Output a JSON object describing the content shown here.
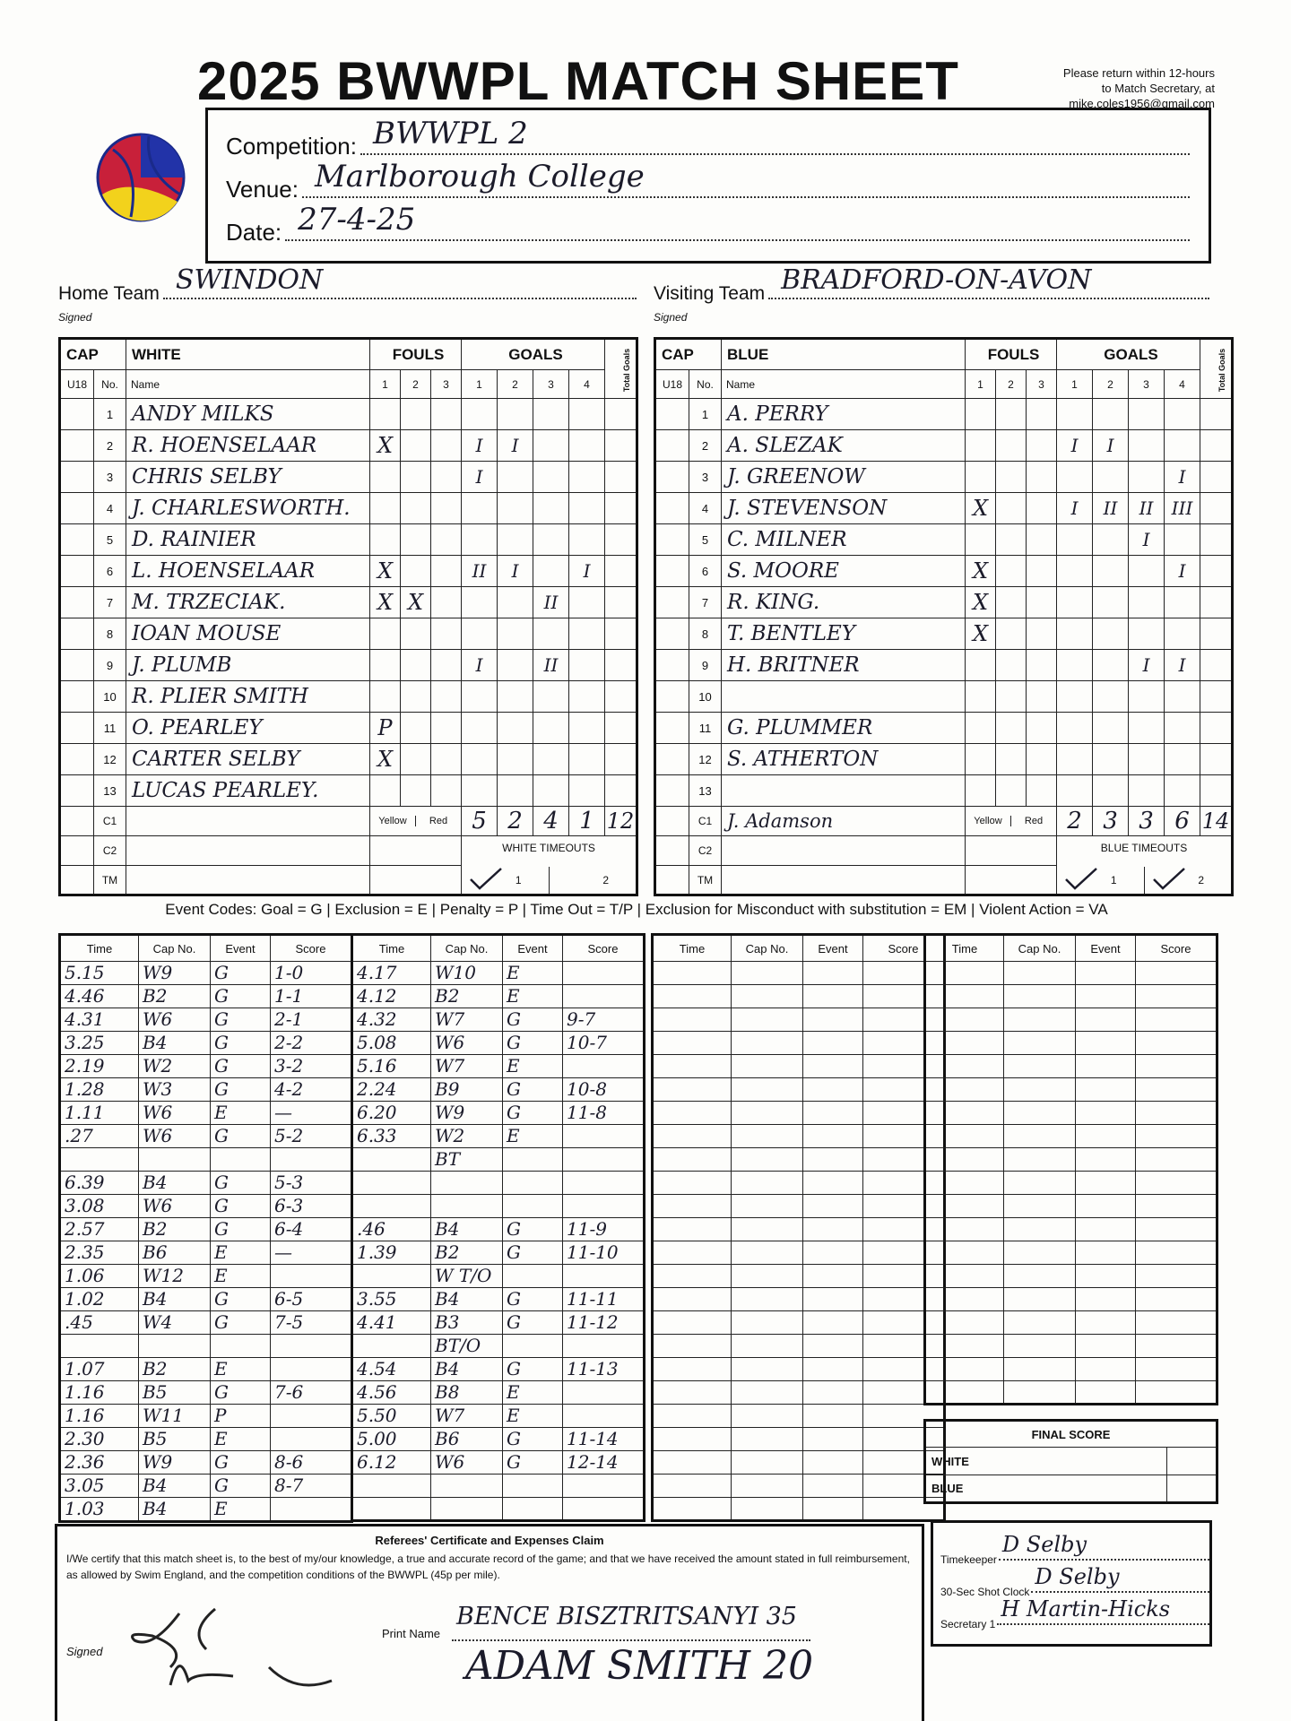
{
  "header": {
    "title": "2025 BWWPL MATCH SHEET",
    "return_note": [
      "Please return within 12-hours",
      "to Match Secretary, at",
      "mike.coles1956@gmail.com"
    ]
  },
  "match": {
    "fields": [
      {
        "label": "Competition:",
        "value": "BWWPL 2"
      },
      {
        "label": "Venue:",
        "value": "Marlborough College"
      },
      {
        "label": "Date:",
        "value": "27-4-25"
      }
    ]
  },
  "teams": [
    {
      "label": "Home Team",
      "team_name": "SWINDON",
      "signed": "Signed",
      "cap": "CAP",
      "colour": "WHITE",
      "fouls": "FOULS",
      "goals": "GOALS",
      "total": "Total Goals",
      "u18": "U18",
      "no": "No.",
      "name_header": "Name",
      "foul_cols": [
        "1",
        "2",
        "3"
      ],
      "goal_cols": [
        "1",
        "2",
        "3",
        "4"
      ],
      "players": [
        {
          "no": "1",
          "name": "ANDY MILKS"
        },
        {
          "no": "2",
          "name": "R. HOENSELAAR",
          "fouls": [
            "X"
          ],
          "goals": {
            "1": "I",
            "2": "I"
          }
        },
        {
          "no": "3",
          "name": "CHRIS SELBY",
          "goals": {
            "1": "I"
          }
        },
        {
          "no": "4",
          "name": "J. CHARLESWORTH."
        },
        {
          "no": "5",
          "name": "D. RAINIER"
        },
        {
          "no": "6",
          "name": "L. HOENSELAAR",
          "fouls": [
            "X"
          ],
          "goals": {
            "1": "II",
            "2": "I",
            "4": "I"
          }
        },
        {
          "no": "7",
          "name": "M. TRZECIAK.",
          "fouls": [
            "X",
            "X"
          ],
          "goals": {
            "3": "II"
          }
        },
        {
          "no": "8",
          "name": "IOAN MOUSE"
        },
        {
          "no": "9",
          "name": "J. PLUMB",
          "goals": {
            "1": "I",
            "3": "II"
          }
        },
        {
          "no": "10",
          "name": "R. PLIER SMITH"
        },
        {
          "no": "11",
          "name": "O. PEARLEY",
          "fouls": [
            "P"
          ]
        },
        {
          "no": "12",
          "name": "CARTER SELBY",
          "fouls": [
            "X"
          ]
        },
        {
          "no": "13",
          "name": "LUCAS PEARLEY."
        }
      ],
      "official_rows": [
        "C1",
        "C2",
        "TM"
      ],
      "card_labels": [
        "Yellow",
        "Red"
      ],
      "quarter_totals": [
        "5",
        "2",
        "4",
        "1"
      ],
      "total_goals": "12",
      "timeouts_label": "WHITE TIMEOUTS",
      "timeout_cols": [
        "1",
        "2"
      ],
      "timeouts_taken": 1
    },
    {
      "label": "Visiting Team",
      "team_name": "BRADFORD-ON-AVON",
      "signed": "Signed",
      "cap": "CAP",
      "colour": "BLUE",
      "fouls": "FOULS",
      "goals": "GOALS",
      "total": "Total Goals",
      "u18": "U18",
      "no": "No.",
      "name_header": "Name",
      "foul_cols": [
        "1",
        "2",
        "3"
      ],
      "goal_cols": [
        "1",
        "2",
        "3",
        "4"
      ],
      "players": [
        {
          "no": "1",
          "name": "A. PERRY"
        },
        {
          "no": "2",
          "name": "A. SLEZAK",
          "goals": {
            "1": "I",
            "2": "I"
          }
        },
        {
          "no": "3",
          "name": "J. GREENOW",
          "goals": {
            "4": "I"
          }
        },
        {
          "no": "4",
          "name": "J. STEVENSON",
          "fouls": [
            "X"
          ],
          "goals": {
            "1": "I",
            "2": "II",
            "3": "II",
            "4": "III"
          }
        },
        {
          "no": "5",
          "name": "C. MILNER",
          "goals": {
            "3": "I"
          }
        },
        {
          "no": "6",
          "name": "S. MOORE",
          "fouls": [
            "X"
          ],
          "goals": {
            "4": "I"
          }
        },
        {
          "no": "7",
          "name": "R. KING.",
          "fouls": [
            "X"
          ]
        },
        {
          "no": "8",
          "name": "T. BENTLEY",
          "fouls": [
            "X"
          ]
        },
        {
          "no": "9",
          "name": "H. BRITNER",
          "goals": {
            "3": "I",
            "4": "I"
          }
        },
        {
          "no": "10"
        },
        {
          "no": "11",
          "name": "G. PLUMMER"
        },
        {
          "no": "12",
          "name": "S. ATHERTON"
        },
        {
          "no": "13"
        }
      ],
      "coach": "J. Adamson",
      "official_rows": [
        "C1",
        "C2",
        "TM"
      ],
      "card_labels": [
        "Yellow",
        "Red"
      ],
      "quarter_totals": [
        "2",
        "3",
        "3",
        "6"
      ],
      "total_goals": "14",
      "timeouts_label": "BLUE TIMEOUTS",
      "timeout_cols": [
        "1",
        "2"
      ],
      "timeouts_taken": 2
    }
  ],
  "event_codes": "Event Codes: Goal = G | Exclusion = E | Penalty = P | Time Out = T/P | Exclusion for Misconduct with substitution = EM | Violent Action = VA",
  "event_log": {
    "headers": [
      "Time",
      "Cap No.",
      "Event",
      "Score"
    ],
    "columns": [
      [
        {
          "time": "5.15",
          "cap": "W9",
          "event": "G",
          "score": "1-0"
        },
        {
          "time": "4.46",
          "cap": "B2",
          "event": "G",
          "score": "1-1"
        },
        {
          "time": "4.31",
          "cap": "W6",
          "event": "G",
          "score": "2-1"
        },
        {
          "time": "3.25",
          "cap": "B4",
          "event": "G",
          "score": "2-2"
        },
        {
          "time": "2.19",
          "cap": "W2",
          "event": "G",
          "score": "3-2"
        },
        {
          "time": "1.28",
          "cap": "W3",
          "event": "G",
          "score": "4-2"
        },
        {
          "time": "1.11",
          "cap": "W6",
          "event": "E",
          "score": "—"
        },
        {
          "time": ".27",
          "cap": "W6",
          "event": "G",
          "score": "5-2"
        },
        null,
        {
          "time": "6.39",
          "cap": "B4",
          "event": "G",
          "score": "5-3"
        },
        {
          "time": "3.08",
          "cap": "W6",
          "event": "G",
          "score": "6-3"
        },
        {
          "time": "2.57",
          "cap": "B2",
          "event": "G",
          "score": "6-4"
        },
        {
          "time": "2.35",
          "cap": "B6",
          "event": "E",
          "score": "—"
        },
        {
          "time": "1.06",
          "cap": "W12",
          "event": "E"
        },
        {
          "time": "1.02",
          "cap": "B4",
          "event": "G",
          "score": "6-5"
        },
        {
          "time": ".45",
          "cap": "W4",
          "event": "G",
          "score": "7-5"
        },
        null,
        {
          "time": "1.07",
          "cap": "B2",
          "event": "E"
        },
        {
          "time": "1.16",
          "cap": "B5",
          "event": "G",
          "score": "7-6"
        },
        {
          "time": "1.16",
          "cap": "W11",
          "event": "P"
        },
        {
          "time": "2.30",
          "cap": "B5",
          "event": "E"
        },
        {
          "time": "2.36",
          "cap": "W9",
          "event": "G",
          "score": "8-6"
        },
        {
          "time": "3.05",
          "cap": "B4",
          "event": "G",
          "score": "8-7"
        },
        {
          "time": "1.03",
          "cap": "B4",
          "event": "E"
        }
      ],
      [
        {
          "time": "4.17",
          "cap": "W10",
          "event": "E"
        },
        {
          "time": "4.12",
          "cap": "B2",
          "event": "E"
        },
        {
          "time": "4.32",
          "cap": "W7",
          "event": "G",
          "score": "9-7"
        },
        {
          "time": "5.08",
          "cap": "W6",
          "event": "G",
          "score": "10-7"
        },
        {
          "time": "5.16",
          "cap": "W7",
          "event": "E"
        },
        {
          "time": "2.24",
          "cap": "B9",
          "event": "G",
          "score": "10-8"
        },
        {
          "time": "6.20",
          "cap": "W9",
          "event": "G",
          "score": "11-8"
        },
        {
          "time": "6.33",
          "cap": "W2",
          "event": "E"
        },
        {
          "cap": "BT"
        },
        null,
        null,
        {
          "time": ".46",
          "cap": "B4",
          "event": "G",
          "score": "11-9"
        },
        {
          "time": "1.39",
          "cap": "B2",
          "event": "G",
          "score": "11-10"
        },
        {
          "cap": "W T/O"
        },
        {
          "time": "3.55",
          "cap": "B4",
          "event": "G",
          "score": "11-11"
        },
        {
          "time": "4.41",
          "cap": "B3",
          "event": "G",
          "score": "11-12"
        },
        {
          "cap": "BT/O"
        },
        {
          "time": "4.54",
          "cap": "B4",
          "event": "G",
          "score": "11-13"
        },
        {
          "time": "4.56",
          "cap": "B8",
          "event": "E"
        },
        {
          "time": "5.50",
          "cap": "W7",
          "event": "E"
        },
        {
          "time": "5.00",
          "cap": "B6",
          "event": "G",
          "score": "11-14"
        },
        {
          "time": "6.12",
          "cap": "W6",
          "event": "G",
          "score": "12-14"
        }
      ]
    ]
  },
  "final_score": {
    "title": "FINAL SCORE",
    "rows": [
      "WHITE",
      "BLUE"
    ]
  },
  "certificate": {
    "title": "Referees' Certificate and Expenses Claim",
    "text": "I/We certify that this match sheet is, to the best of my/our knowledge, a true and accurate record of the game; and that we have received the amount stated in full reimbursement, as allowed by Swim England, and the competition conditions of the BWWPL (45p per mile).",
    "signed": "Signed",
    "print_name": "Print Name",
    "names": [
      "BENCE BISZTRITSANYI 35",
      "ADAM SMITH 20"
    ]
  },
  "officials": [
    {
      "label": "Timekeeper",
      "value": "D Selby"
    },
    {
      "label": "30-Sec Shot Clock",
      "value": "D Selby"
    },
    {
      "label": "Secretary 1",
      "value": "H Martin-Hicks"
    }
  ]
}
